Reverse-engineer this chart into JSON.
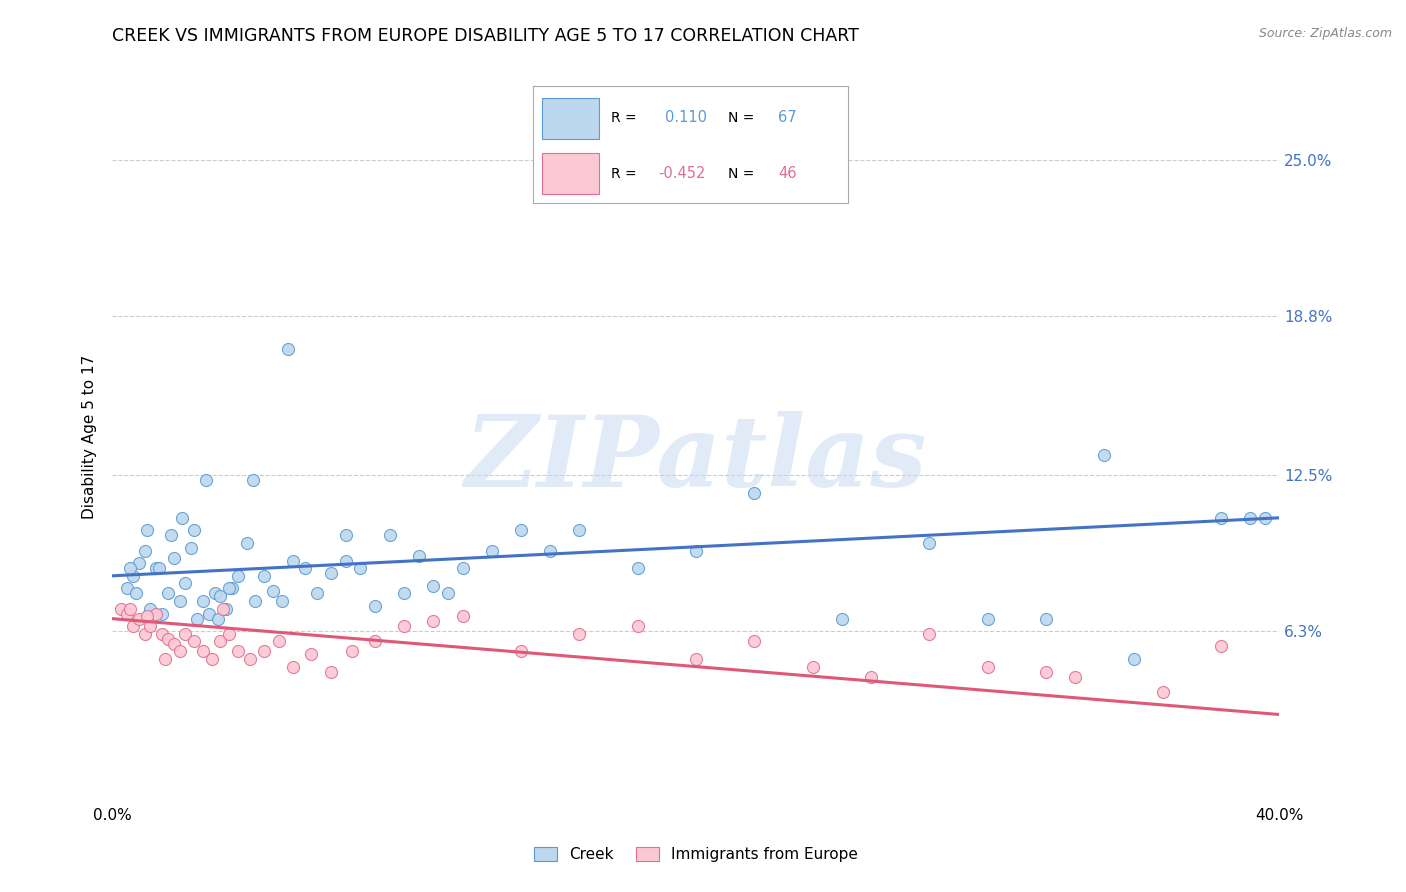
{
  "title": "CREEK VS IMMIGRANTS FROM EUROPE DISABILITY AGE 5 TO 17 CORRELATION CHART",
  "source": "Source: ZipAtlas.com",
  "ylabel": "Disability Age 5 to 17",
  "background_color": "#ffffff",
  "creek_color": "#bdd7ee",
  "creek_edge_color": "#5b9bd5",
  "immigrants_color": "#fcc8d4",
  "immigrants_edge_color": "#e07090",
  "creek_line_color": "#4472c4",
  "immigrants_line_color": "#e05878",
  "right_tick_color": "#4472c4",
  "grid_color": "#cccccc",
  "creek_R": 0.11,
  "creek_N": 67,
  "immigrants_R": -0.452,
  "immigrants_N": 46,
  "xlim": [
    0.0,
    0.4
  ],
  "ylim": [
    -0.005,
    0.285
  ],
  "ytick_positions": [
    0.063,
    0.125,
    0.188,
    0.25
  ],
  "ytick_labels": [
    "6.3%",
    "12.5%",
    "18.8%",
    "25.0%"
  ],
  "xtick_positions": [
    0.0,
    0.1,
    0.2,
    0.3,
    0.4
  ],
  "xtick_labels": [
    "0.0%",
    "",
    "",
    "",
    "40.0%"
  ],
  "marker_size": 75,
  "watermark_text": "ZIPatlas",
  "watermark_color": "#c5d8f0",
  "watermark_alpha": 0.5,
  "creek_x": [
    0.005,
    0.007,
    0.009,
    0.011,
    0.013,
    0.015,
    0.017,
    0.019,
    0.021,
    0.023,
    0.025,
    0.027,
    0.029,
    0.031,
    0.033,
    0.035,
    0.037,
    0.039,
    0.041,
    0.043,
    0.046,
    0.049,
    0.052,
    0.055,
    0.058,
    0.062,
    0.066,
    0.07,
    0.075,
    0.08,
    0.085,
    0.09,
    0.095,
    0.1,
    0.105,
    0.11,
    0.115,
    0.12,
    0.13,
    0.14,
    0.15,
    0.16,
    0.18,
    0.2,
    0.22,
    0.25,
    0.28,
    0.3,
    0.32,
    0.35,
    0.38,
    0.006,
    0.008,
    0.012,
    0.016,
    0.02,
    0.024,
    0.028,
    0.032,
    0.036,
    0.04,
    0.048,
    0.06,
    0.08,
    0.34,
    0.39,
    0.395
  ],
  "creek_y": [
    0.08,
    0.085,
    0.09,
    0.095,
    0.072,
    0.088,
    0.07,
    0.078,
    0.092,
    0.075,
    0.082,
    0.096,
    0.068,
    0.075,
    0.07,
    0.078,
    0.077,
    0.072,
    0.08,
    0.085,
    0.098,
    0.075,
    0.085,
    0.079,
    0.075,
    0.091,
    0.088,
    0.078,
    0.086,
    0.091,
    0.088,
    0.073,
    0.101,
    0.078,
    0.093,
    0.081,
    0.078,
    0.088,
    0.095,
    0.103,
    0.095,
    0.103,
    0.088,
    0.095,
    0.118,
    0.068,
    0.098,
    0.068,
    0.068,
    0.052,
    0.108,
    0.088,
    0.078,
    0.103,
    0.088,
    0.101,
    0.108,
    0.103,
    0.123,
    0.068,
    0.08,
    0.123,
    0.175,
    0.101,
    0.133,
    0.108,
    0.108
  ],
  "immigrants_x": [
    0.003,
    0.005,
    0.007,
    0.009,
    0.011,
    0.013,
    0.015,
    0.017,
    0.019,
    0.021,
    0.023,
    0.025,
    0.028,
    0.031,
    0.034,
    0.037,
    0.04,
    0.043,
    0.047,
    0.052,
    0.057,
    0.062,
    0.068,
    0.075,
    0.082,
    0.09,
    0.1,
    0.11,
    0.12,
    0.14,
    0.16,
    0.18,
    0.2,
    0.22,
    0.24,
    0.26,
    0.28,
    0.3,
    0.33,
    0.36,
    0.006,
    0.012,
    0.018,
    0.038,
    0.32,
    0.38
  ],
  "immigrants_y": [
    0.072,
    0.07,
    0.065,
    0.068,
    0.062,
    0.065,
    0.07,
    0.062,
    0.06,
    0.058,
    0.055,
    0.062,
    0.059,
    0.055,
    0.052,
    0.059,
    0.062,
    0.055,
    0.052,
    0.055,
    0.059,
    0.049,
    0.054,
    0.047,
    0.055,
    0.059,
    0.065,
    0.067,
    0.069,
    0.055,
    0.062,
    0.065,
    0.052,
    0.059,
    0.049,
    0.045,
    0.062,
    0.049,
    0.045,
    0.039,
    0.072,
    0.069,
    0.052,
    0.072,
    0.047,
    0.057
  ]
}
